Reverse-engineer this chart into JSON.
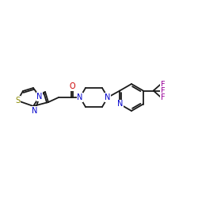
{
  "background": "#ffffff",
  "bond_color": "#1a1a1a",
  "atom_colors": {
    "N": "#0000cc",
    "O": "#cc0000",
    "S": "#888800",
    "F": "#990099",
    "C": "#1a1a1a"
  },
  "figsize": [
    2.5,
    2.5
  ],
  "dpi": 100,
  "lw": 1.3,
  "fs": 7.0
}
